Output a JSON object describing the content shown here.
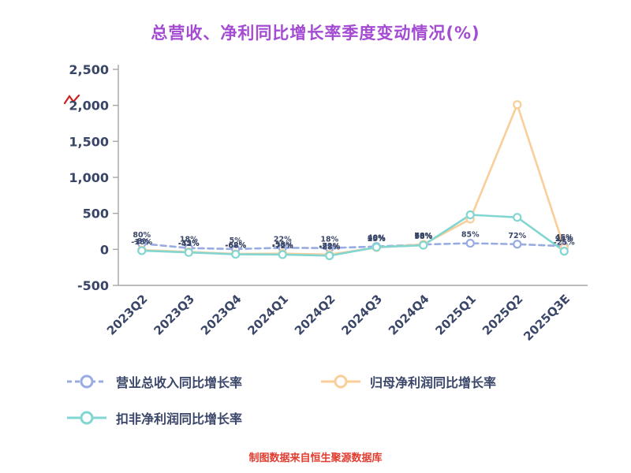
{
  "title": "总营收、净利同比增长率季度变动情况(%)",
  "footer": "制图数据来自恒生聚源数据库",
  "colors": {
    "title": "#A34BD2",
    "axis_text": "#3A4668",
    "axis_line": "#A6A6A6",
    "footer": "#E13C2F",
    "red_mark": "#CC2222",
    "revenue": "#98ACE2",
    "net_profit": "#F9CE98",
    "non_gaap": "#82D6D2"
  },
  "chart_data": {
    "type": "line",
    "title": "总营收、净利同比增长率季度变动情况(%)",
    "categories": [
      "2023Q2",
      "2023Q3",
      "2023Q4",
      "2024Q1",
      "2024Q2",
      "2024Q3",
      "2024Q4",
      "2025Q1",
      "2025Q2",
      "2025Q3E"
    ],
    "series": [
      {
        "name": "营业总收入同比增长率",
        "color_key": "revenue",
        "dashed": true,
        "values": [
          80,
          18,
          5,
          22,
          18,
          40,
          68,
          85,
          72,
          45
        ]
      },
      {
        "name": "归母净利润同比增长率",
        "color_key": "net_profit",
        "dashed": false,
        "values": [
          -8,
          -35,
          -62,
          -58,
          -72,
          25,
          70,
          420,
          2010,
          25
        ]
      },
      {
        "name": "扣非净利润同比增长率",
        "color_key": "non_gaap",
        "dashed": false,
        "values": [
          -18,
          -42,
          -68,
          -72,
          -88,
          30,
          58,
          480,
          445,
          -25
        ]
      }
    ],
    "ylim": [
      -500,
      2500
    ],
    "yticks": [
      2500,
      2000,
      1500,
      1000,
      500,
      0,
      -500
    ],
    "grid": false,
    "legend_position": "bottom",
    "point_label_suffix": "%",
    "point_label_max_abs": 130
  }
}
